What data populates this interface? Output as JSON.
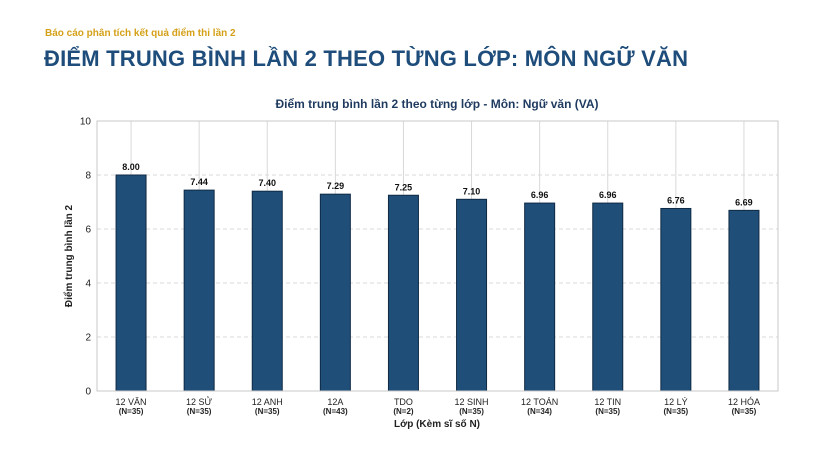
{
  "header": {
    "subtitle": "Báo cáo phân tích kết quả điểm thi lần 2",
    "title": "ĐIỂM TRUNG BÌNH LẦN 2 THEO TỪNG LỚP: MÔN NGỮ VĂN"
  },
  "chart_data": {
    "type": "bar",
    "title": "Điểm trung bình lần 2 theo từng lớp - Môn: Ngữ văn (VA)",
    "xlabel": "Lớp (Kèm sĩ số N)",
    "ylabel": "Điểm trung bình lần 2",
    "ylim": [
      0,
      10
    ],
    "yticks": [
      0,
      2,
      4,
      6,
      8,
      10
    ],
    "grid": true,
    "categories": [
      "12 VĂN",
      "12 SỬ",
      "12 ANH",
      "12A",
      "TDO",
      "12 SINH",
      "12 TOÁN",
      "12 TIN",
      "12 LÝ",
      "12 HÓA"
    ],
    "category_n": [
      "(N=35)",
      "(N=35)",
      "(N=35)",
      "(N=43)",
      "(N=2)",
      "(N=35)",
      "(N=34)",
      "(N=35)",
      "(N=35)",
      "(N=35)"
    ],
    "values": [
      8.0,
      7.44,
      7.4,
      7.29,
      7.25,
      7.1,
      6.96,
      6.96,
      6.76,
      6.69
    ],
    "data_labels": [
      "8.00",
      "7.44",
      "7.40",
      "7.29",
      "7.25",
      "7.10",
      "6.96",
      "6.96",
      "6.76",
      "6.69"
    ],
    "colors": {
      "bar": "#1f4e79",
      "bar_edge": "#0f2a44",
      "grid": "#d9d9d9",
      "axis": "#c8c8c8"
    }
  }
}
